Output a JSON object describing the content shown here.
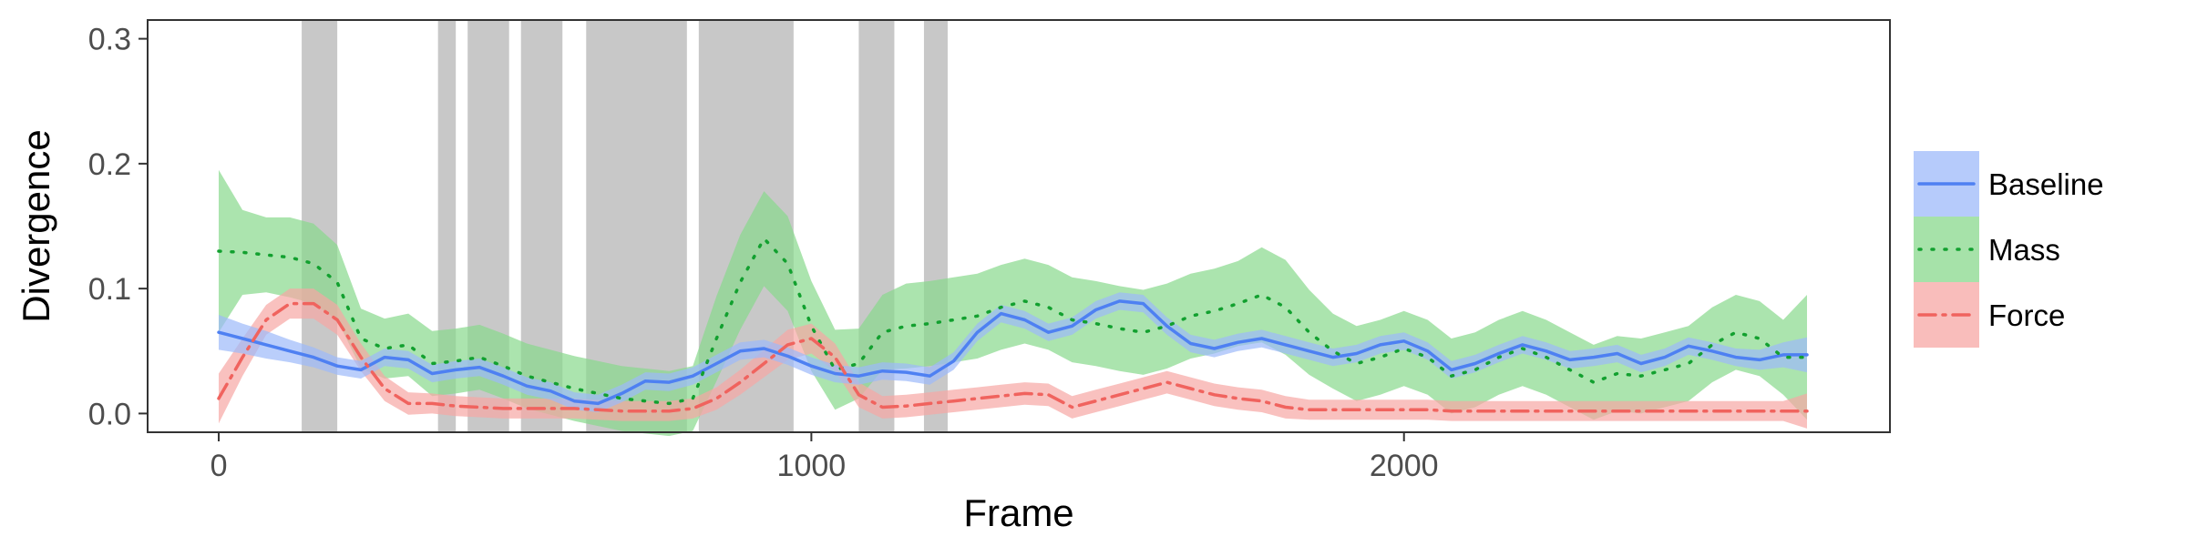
{
  "chart_data": {
    "type": "line",
    "title": "",
    "xlabel": "Frame",
    "ylabel": "Divergence",
    "xlim": [
      -120,
      2820
    ],
    "ylim": [
      -0.015,
      0.315
    ],
    "x_ticks": [
      0,
      1000,
      2000
    ],
    "x_tick_labels": [
      "0",
      "1000",
      "2000"
    ],
    "y_ticks": [
      0.0,
      0.1,
      0.2,
      0.3
    ],
    "y_tick_labels": [
      "0.0",
      "0.1",
      "0.2",
      "0.3"
    ],
    "grid": false,
    "legend_position": "right",
    "shaded_intervals": [
      [
        140,
        200
      ],
      [
        370,
        400
      ],
      [
        420,
        490
      ],
      [
        510,
        580
      ],
      [
        620,
        790
      ],
      [
        810,
        970
      ],
      [
        1080,
        1140
      ],
      [
        1190,
        1230
      ]
    ],
    "shaded_color": "#c8c8c8",
    "x": [
      0,
      40,
      80,
      120,
      160,
      200,
      240,
      280,
      320,
      360,
      400,
      440,
      480,
      520,
      560,
      600,
      640,
      680,
      720,
      760,
      800,
      840,
      880,
      920,
      960,
      1000,
      1040,
      1080,
      1120,
      1160,
      1200,
      1240,
      1280,
      1320,
      1360,
      1400,
      1440,
      1480,
      1520,
      1560,
      1600,
      1640,
      1680,
      1720,
      1760,
      1800,
      1840,
      1880,
      1920,
      1960,
      2000,
      2040,
      2080,
      2120,
      2160,
      2200,
      2240,
      2280,
      2320,
      2360,
      2400,
      2440,
      2480,
      2520,
      2560,
      2600,
      2640,
      2680
    ],
    "series": [
      {
        "name": "Baseline",
        "color": "#4e80f2",
        "band_color": "#9db9f9",
        "dash": "",
        "values": [
          0.065,
          0.06,
          0.055,
          0.05,
          0.045,
          0.038,
          0.035,
          0.045,
          0.043,
          0.032,
          0.035,
          0.037,
          0.03,
          0.022,
          0.018,
          0.01,
          0.008,
          0.016,
          0.026,
          0.025,
          0.03,
          0.04,
          0.05,
          0.052,
          0.046,
          0.038,
          0.032,
          0.03,
          0.034,
          0.033,
          0.03,
          0.042,
          0.065,
          0.08,
          0.075,
          0.065,
          0.07,
          0.083,
          0.09,
          0.088,
          0.07,
          0.056,
          0.052,
          0.057,
          0.06,
          0.055,
          0.05,
          0.045,
          0.048,
          0.055,
          0.058,
          0.05,
          0.035,
          0.04,
          0.048,
          0.055,
          0.05,
          0.043,
          0.045,
          0.048,
          0.04,
          0.045,
          0.054,
          0.05,
          0.045,
          0.043,
          0.047,
          0.047
        ],
        "band_halfwidth": [
          0.014,
          0.012,
          0.011,
          0.009,
          0.008,
          0.007,
          0.007,
          0.007,
          0.007,
          0.007,
          0.007,
          0.007,
          0.007,
          0.007,
          0.007,
          0.007,
          0.007,
          0.007,
          0.007,
          0.007,
          0.007,
          0.007,
          0.007,
          0.007,
          0.007,
          0.007,
          0.007,
          0.007,
          0.007,
          0.007,
          0.007,
          0.007,
          0.007,
          0.007,
          0.007,
          0.007,
          0.007,
          0.007,
          0.007,
          0.007,
          0.007,
          0.007,
          0.007,
          0.007,
          0.007,
          0.007,
          0.007,
          0.007,
          0.007,
          0.007,
          0.007,
          0.007,
          0.007,
          0.007,
          0.007,
          0.007,
          0.007,
          0.007,
          0.007,
          0.007,
          0.007,
          0.007,
          0.007,
          0.007,
          0.007,
          0.008,
          0.01,
          0.014
        ]
      },
      {
        "name": "Mass",
        "color": "#12a02f",
        "band_color": "#88d88c",
        "dash": "2 12",
        "values": [
          0.13,
          0.129,
          0.127,
          0.125,
          0.12,
          0.105,
          0.06,
          0.052,
          0.055,
          0.04,
          0.042,
          0.045,
          0.038,
          0.03,
          0.025,
          0.02,
          0.016,
          0.012,
          0.01,
          0.008,
          0.012,
          0.06,
          0.105,
          0.14,
          0.12,
          0.07,
          0.035,
          0.04,
          0.065,
          0.07,
          0.072,
          0.075,
          0.078,
          0.085,
          0.09,
          0.085,
          0.075,
          0.072,
          0.068,
          0.065,
          0.07,
          0.078,
          0.082,
          0.088,
          0.095,
          0.085,
          0.065,
          0.05,
          0.04,
          0.045,
          0.052,
          0.045,
          0.03,
          0.035,
          0.045,
          0.052,
          0.045,
          0.035,
          0.025,
          0.032,
          0.03,
          0.035,
          0.04,
          0.055,
          0.065,
          0.06,
          0.045,
          0.045
        ],
        "band_halfwidth": [
          0.065,
          0.034,
          0.03,
          0.032,
          0.032,
          0.03,
          0.024,
          0.024,
          0.025,
          0.026,
          0.026,
          0.026,
          0.026,
          0.026,
          0.026,
          0.026,
          0.026,
          0.026,
          0.026,
          0.026,
          0.026,
          0.034,
          0.038,
          0.038,
          0.038,
          0.036,
          0.032,
          0.028,
          0.03,
          0.034,
          0.034,
          0.034,
          0.034,
          0.034,
          0.034,
          0.034,
          0.034,
          0.034,
          0.034,
          0.034,
          0.034,
          0.034,
          0.034,
          0.034,
          0.038,
          0.038,
          0.034,
          0.03,
          0.03,
          0.03,
          0.03,
          0.03,
          0.03,
          0.03,
          0.03,
          0.03,
          0.03,
          0.03,
          0.03,
          0.03,
          0.03,
          0.03,
          0.03,
          0.03,
          0.03,
          0.03,
          0.03,
          0.05
        ]
      },
      {
        "name": "Force",
        "color": "#f0635e",
        "band_color": "#f7a7a4",
        "dash": "18 8 3 8",
        "values": [
          0.012,
          0.045,
          0.075,
          0.088,
          0.088,
          0.075,
          0.045,
          0.02,
          0.008,
          0.008,
          0.006,
          0.005,
          0.004,
          0.004,
          0.004,
          0.004,
          0.003,
          0.002,
          0.002,
          0.002,
          0.004,
          0.012,
          0.025,
          0.04,
          0.055,
          0.06,
          0.045,
          0.015,
          0.005,
          0.006,
          0.008,
          0.01,
          0.012,
          0.014,
          0.016,
          0.015,
          0.005,
          0.01,
          0.015,
          0.02,
          0.025,
          0.02,
          0.015,
          0.012,
          0.01,
          0.005,
          0.003,
          0.003,
          0.003,
          0.003,
          0.003,
          0.003,
          0.002,
          0.002,
          0.002,
          0.002,
          0.002,
          0.002,
          0.002,
          0.002,
          0.002,
          0.002,
          0.002,
          0.002,
          0.002,
          0.002,
          0.002,
          0.002
        ],
        "band_halfwidth": [
          0.02,
          0.015,
          0.012,
          0.012,
          0.012,
          0.012,
          0.011,
          0.01,
          0.009,
          0.008,
          0.008,
          0.008,
          0.008,
          0.008,
          0.008,
          0.008,
          0.008,
          0.008,
          0.008,
          0.008,
          0.008,
          0.009,
          0.01,
          0.011,
          0.012,
          0.012,
          0.011,
          0.01,
          0.009,
          0.009,
          0.009,
          0.009,
          0.009,
          0.009,
          0.009,
          0.009,
          0.009,
          0.009,
          0.009,
          0.009,
          0.009,
          0.009,
          0.009,
          0.009,
          0.009,
          0.009,
          0.008,
          0.008,
          0.008,
          0.008,
          0.008,
          0.008,
          0.008,
          0.008,
          0.008,
          0.008,
          0.008,
          0.008,
          0.008,
          0.008,
          0.008,
          0.008,
          0.008,
          0.008,
          0.008,
          0.008,
          0.008,
          0.014
        ]
      }
    ]
  }
}
